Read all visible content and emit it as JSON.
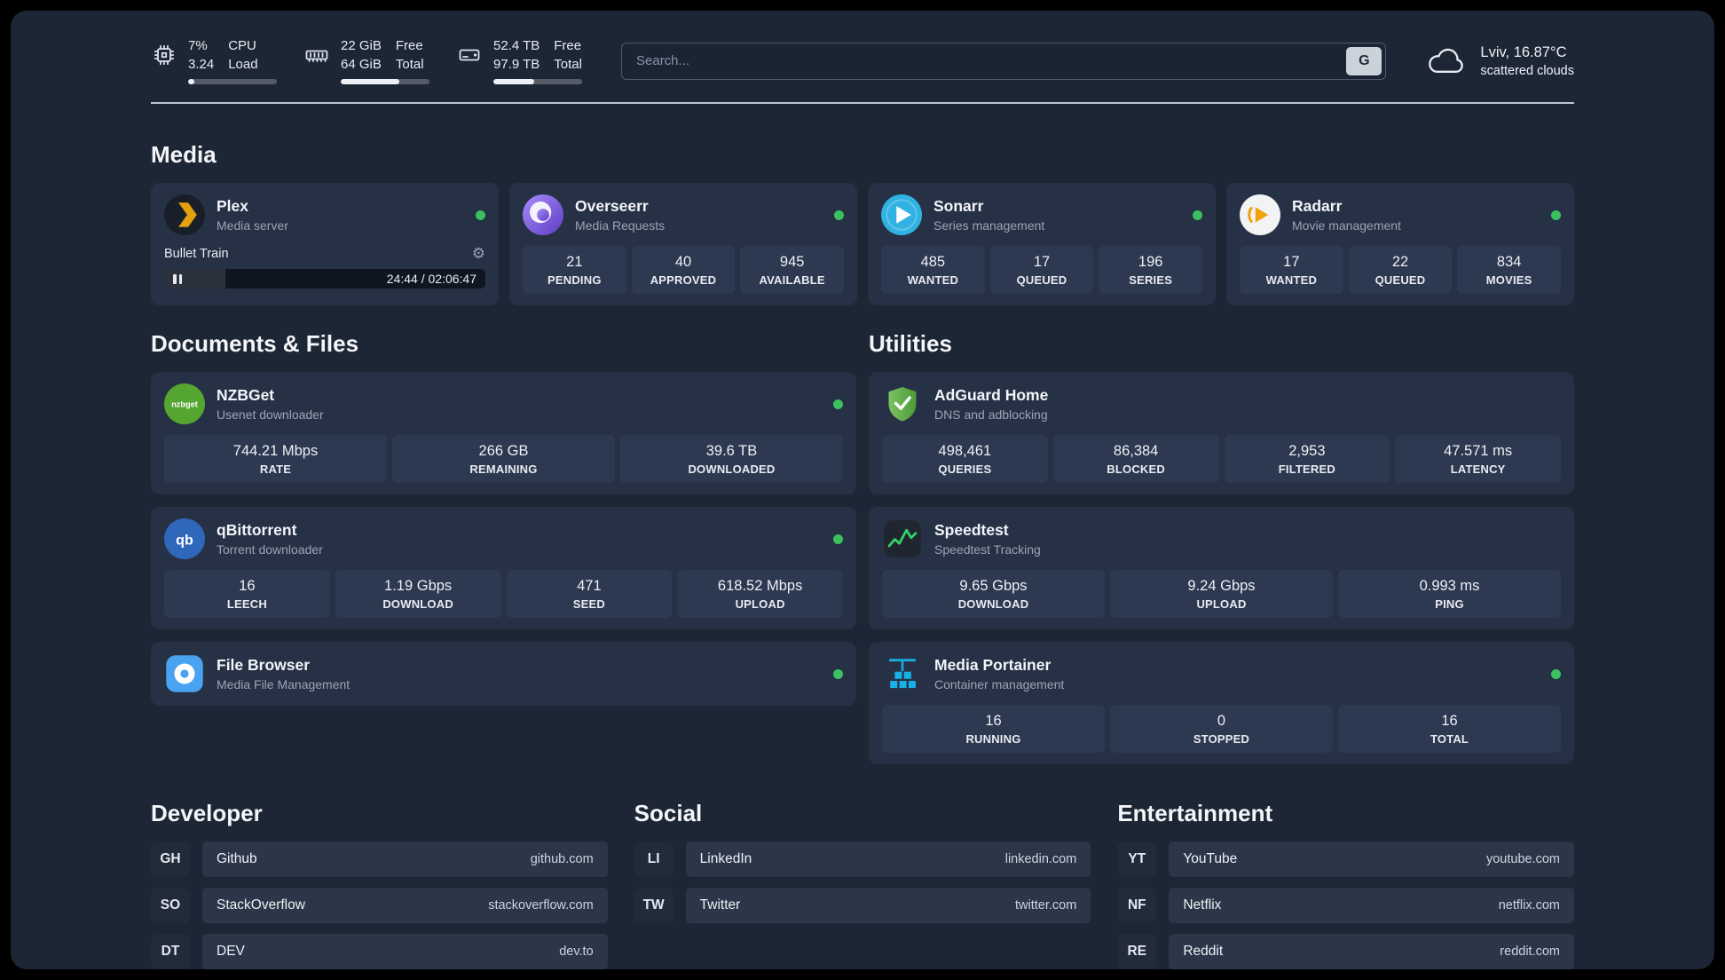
{
  "topbar": {
    "cpu": {
      "value1": "7%",
      "label1": "CPU",
      "value2": "3.24",
      "label2": "Load",
      "progress": 7
    },
    "ram": {
      "value1": "22 GiB",
      "label1": "Free",
      "value2": "64 GiB",
      "label2": "Total",
      "progress": 66
    },
    "disk": {
      "value1": "52.4 TB",
      "label1": "Free",
      "value2": "97.9 TB",
      "label2": "Total",
      "progress": 46
    },
    "search": {
      "placeholder": "Search...",
      "engine": "G"
    },
    "weather": {
      "location": "Lviv, 16.87°C",
      "condition": "scattered clouds"
    }
  },
  "sections": {
    "media": "Media",
    "documents": "Documents & Files",
    "utilities": "Utilities",
    "developer": "Developer",
    "social": "Social",
    "entertainment": "Entertainment"
  },
  "services": {
    "plex": {
      "name": "Plex",
      "subtitle": "Media server",
      "player": {
        "title": "Bullet Train",
        "time": "24:44 / 02:06:47",
        "progress_pct": 19
      }
    },
    "overseerr": {
      "name": "Overseerr",
      "subtitle": "Media Requests",
      "stats": [
        {
          "value": "21",
          "label": "PENDING"
        },
        {
          "value": "40",
          "label": "APPROVED"
        },
        {
          "value": "945",
          "label": "AVAILABLE"
        }
      ]
    },
    "sonarr": {
      "name": "Sonarr",
      "subtitle": "Series management",
      "stats": [
        {
          "value": "485",
          "label": "WANTED"
        },
        {
          "value": "17",
          "label": "QUEUED"
        },
        {
          "value": "196",
          "label": "SERIES"
        }
      ]
    },
    "radarr": {
      "name": "Radarr",
      "subtitle": "Movie management",
      "stats": [
        {
          "value": "17",
          "label": "WANTED"
        },
        {
          "value": "22",
          "label": "QUEUED"
        },
        {
          "value": "834",
          "label": "MOVIES"
        }
      ]
    },
    "nzbget": {
      "name": "NZBGet",
      "subtitle": "Usenet downloader",
      "icon_text": "nzbget",
      "stats": [
        {
          "value": "744.21 Mbps",
          "label": "RATE"
        },
        {
          "value": "266 GB",
          "label": "REMAINING"
        },
        {
          "value": "39.6 TB",
          "label": "DOWNLOADED"
        }
      ]
    },
    "qbittorrent": {
      "name": "qBittorrent",
      "subtitle": "Torrent downloader",
      "icon_text": "qb",
      "stats": [
        {
          "value": "16",
          "label": "LEECH"
        },
        {
          "value": "1.19 Gbps",
          "label": "DOWNLOAD"
        },
        {
          "value": "471",
          "label": "SEED"
        },
        {
          "value": "618.52 Mbps",
          "label": "UPLOAD"
        }
      ]
    },
    "filebrowser": {
      "name": "File Browser",
      "subtitle": "Media File Management"
    },
    "adguard": {
      "name": "AdGuard Home",
      "subtitle": "DNS and adblocking",
      "stats": [
        {
          "value": "498,461",
          "label": "QUERIES"
        },
        {
          "value": "86,384",
          "label": "BLOCKED"
        },
        {
          "value": "2,953",
          "label": "FILTERED"
        },
        {
          "value": "47.571 ms",
          "label": "LATENCY"
        }
      ]
    },
    "speedtest": {
      "name": "Speedtest",
      "subtitle": "Speedtest Tracking",
      "stats": [
        {
          "value": "9.65 Gbps",
          "label": "DOWNLOAD"
        },
        {
          "value": "9.24 Gbps",
          "label": "UPLOAD"
        },
        {
          "value": "0.993 ms",
          "label": "PING"
        }
      ]
    },
    "portainer": {
      "name": "Media Portainer",
      "subtitle": "Container management",
      "stats": [
        {
          "value": "16",
          "label": "RUNNING"
        },
        {
          "value": "0",
          "label": "STOPPED"
        },
        {
          "value": "16",
          "label": "TOTAL"
        }
      ]
    }
  },
  "bookmarks": {
    "developer": [
      {
        "abbr": "GH",
        "name": "Github",
        "url": "github.com"
      },
      {
        "abbr": "SO",
        "name": "StackOverflow",
        "url": "stackoverflow.com"
      },
      {
        "abbr": "DT",
        "name": "DEV",
        "url": "dev.to"
      }
    ],
    "social": [
      {
        "abbr": "LI",
        "name": "LinkedIn",
        "url": "linkedin.com"
      },
      {
        "abbr": "TW",
        "name": "Twitter",
        "url": "twitter.com"
      }
    ],
    "entertainment": [
      {
        "abbr": "YT",
        "name": "YouTube",
        "url": "youtube.com"
      },
      {
        "abbr": "NF",
        "name": "Netflix",
        "url": "netflix.com"
      },
      {
        "abbr": "RE",
        "name": "Reddit",
        "url": "reddit.com"
      }
    ]
  },
  "colors": {
    "status_online": "#3cc161",
    "plex_gold": "#e5a00d",
    "panel_bg": "#1c2634",
    "card_bg": "#263145"
  }
}
